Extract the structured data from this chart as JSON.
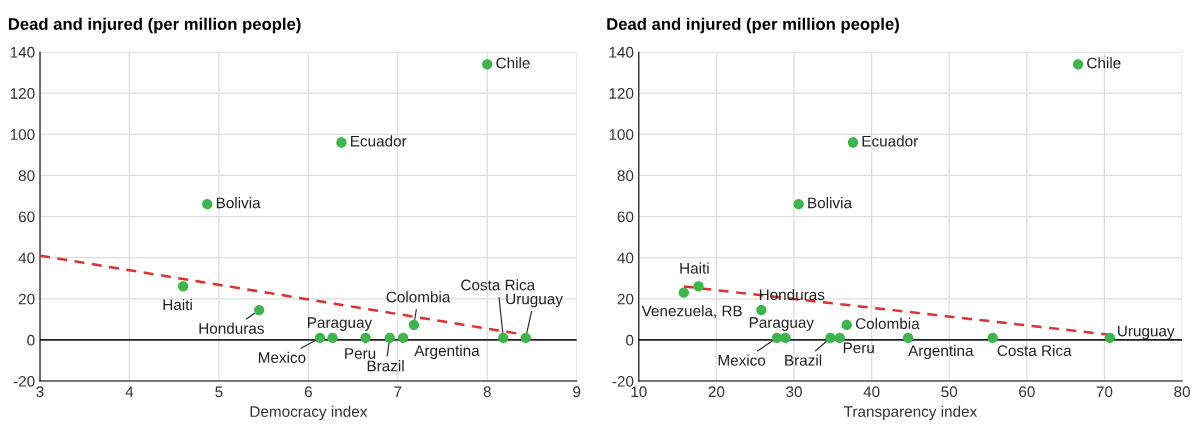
{
  "chart_data": [
    {
      "type": "scatter",
      "title": "Dead and injured (per million people)",
      "xlabel": "Democracy index",
      "xlim": [
        3,
        9
      ],
      "xticks": [
        3,
        4,
        5,
        6,
        7,
        8,
        9
      ],
      "ylim": [
        -20,
        140
      ],
      "yticks": [
        -20,
        0,
        20,
        40,
        60,
        80,
        100,
        120,
        140
      ],
      "grid": true,
      "legend": false,
      "series": [
        {
          "marker": "circle",
          "color": "#3cb54a",
          "x": [
            8.0,
            6.37,
            4.87,
            4.6,
            5.45,
            6.13,
            6.27,
            6.64,
            6.91,
            7.06,
            7.18,
            8.18,
            8.43
          ],
          "values": [
            134,
            96,
            66,
            26,
            14.5,
            1,
            1,
            1,
            1,
            1,
            7.3,
            1,
            1
          ]
        },
        {
          "type": "line",
          "color": "#e03030",
          "line_style": "dashed",
          "x": [
            3,
            8.42
          ],
          "values": [
            41,
            2.5
          ]
        }
      ],
      "ref_lines": [
        {
          "axis": "y",
          "value": 0,
          "color": "#222222"
        }
      ],
      "annotations": [
        {
          "text": "Chile",
          "x": 8.0,
          "y": 134
        },
        {
          "text": "Ecuador",
          "x": 6.37,
          "y": 96
        },
        {
          "text": "Bolivia",
          "x": 4.87,
          "y": 66
        },
        {
          "text": "Haiti",
          "x": 4.6,
          "y": 26
        },
        {
          "text": "Honduras",
          "x": 5.45,
          "y": 14.5
        },
        {
          "text": "Mexico",
          "x": 6.13,
          "y": 1
        },
        {
          "text": "Paraguay",
          "x": 6.27,
          "y": 1
        },
        {
          "text": "Peru",
          "x": 6.64,
          "y": 1
        },
        {
          "text": "Brazil",
          "x": 6.91,
          "y": 1
        },
        {
          "text": "Argentina",
          "x": 7.06,
          "y": 1
        },
        {
          "text": "Colombia",
          "x": 7.18,
          "y": 7.3
        },
        {
          "text": "Costa Rica",
          "x": 8.18,
          "y": 1
        },
        {
          "text": "Uruguay",
          "x": 8.43,
          "y": 1
        }
      ]
    },
    {
      "type": "scatter",
      "title": "Dead and injured (per million people)",
      "xlabel": "Transparency index",
      "xlim": [
        10,
        80
      ],
      "xticks": [
        10,
        20,
        30,
        40,
        50,
        60,
        70,
        80
      ],
      "ylim": [
        -20,
        140
      ],
      "yticks": [
        -20,
        0,
        20,
        40,
        60,
        80,
        100,
        120,
        140
      ],
      "grid": true,
      "legend": false,
      "series": [
        {
          "marker": "circle",
          "color": "#3cb54a",
          "x": [
            66.6,
            37.6,
            30.6,
            15.8,
            17.7,
            25.8,
            27.8,
            28.9,
            34.7,
            35.9,
            36.8,
            44.7,
            55.6,
            70.7
          ],
          "values": [
            134,
            96,
            66,
            23,
            26,
            14.5,
            1,
            1,
            1,
            1,
            7.3,
            1,
            1,
            1
          ]
        },
        {
          "type": "line",
          "color": "#e03030",
          "line_style": "dashed",
          "x": [
            15.8,
            70.7
          ],
          "values": [
            26,
            2.5
          ]
        }
      ],
      "ref_lines": [
        {
          "axis": "y",
          "value": 0,
          "color": "#222222"
        }
      ],
      "annotations": [
        {
          "text": "Chile",
          "x": 66.6,
          "y": 134
        },
        {
          "text": "Ecuador",
          "x": 37.6,
          "y": 96
        },
        {
          "text": "Bolivia",
          "x": 30.6,
          "y": 66
        },
        {
          "text": "Venezuela, RB",
          "x": 15.8,
          "y": 23
        },
        {
          "text": "Haiti",
          "x": 17.7,
          "y": 26
        },
        {
          "text": "Honduras",
          "x": 25.8,
          "y": 14.5
        },
        {
          "text": "Mexico",
          "x": 27.8,
          "y": 1
        },
        {
          "text": "Paraguay",
          "x": 28.9,
          "y": 1
        },
        {
          "text": "Brazil",
          "x": 34.7,
          "y": 1
        },
        {
          "text": "Peru",
          "x": 35.9,
          "y": 1
        },
        {
          "text": "Colombia",
          "x": 36.8,
          "y": 7.3
        },
        {
          "text": "Argentina",
          "x": 44.7,
          "y": 1
        },
        {
          "text": "Costa Rica",
          "x": 55.6,
          "y": 1
        },
        {
          "text": "Uruguay",
          "x": 70.7,
          "y": 1
        }
      ]
    }
  ]
}
